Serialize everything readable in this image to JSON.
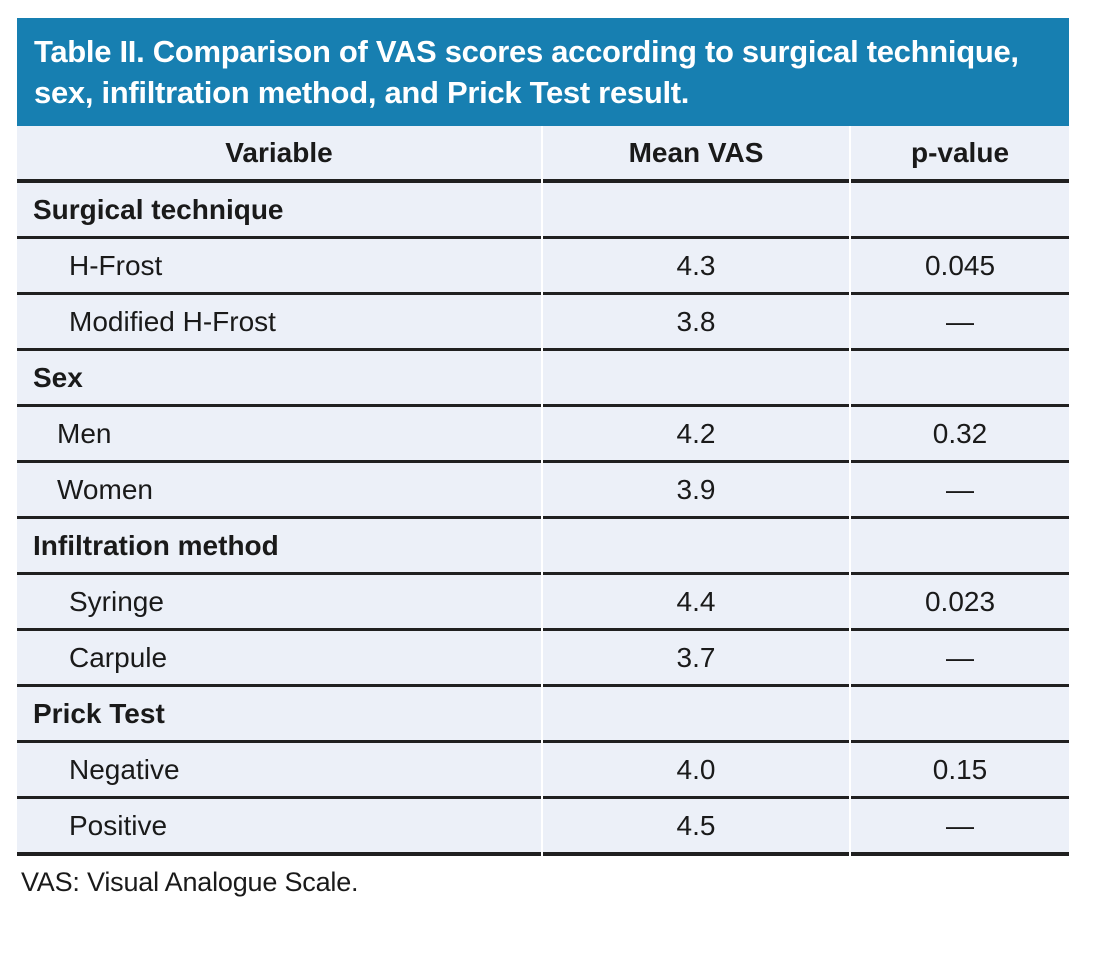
{
  "table": {
    "title": "Table II. Comparison of VAS scores according to surgical technique, sex, infiltration method, and Prick Test result.",
    "columns": [
      "Variable",
      "Mean VAS",
      "p-value"
    ],
    "sections": [
      {
        "label": "Surgical technique",
        "rows": [
          {
            "label": "H-Frost",
            "mean_vas": "4.3",
            "p_value": "0.045",
            "indent": 2
          },
          {
            "label": "Modified H-Frost",
            "mean_vas": "3.8",
            "p_value": "—",
            "indent": 2
          }
        ]
      },
      {
        "label": "Sex",
        "rows": [
          {
            "label": "Men",
            "mean_vas": "4.2",
            "p_value": "0.32",
            "indent": 1
          },
          {
            "label": "Women",
            "mean_vas": "3.9",
            "p_value": "—",
            "indent": 1
          }
        ]
      },
      {
        "label": "Infiltration method",
        "rows": [
          {
            "label": "Syringe",
            "mean_vas": "4.4",
            "p_value": "0.023",
            "indent": 2
          },
          {
            "label": "Carpule",
            "mean_vas": "3.7",
            "p_value": "—",
            "indent": 2
          }
        ]
      },
      {
        "label": "Prick Test",
        "rows": [
          {
            "label": "Negative",
            "mean_vas": "4.0",
            "p_value": "0.15",
            "indent": 2
          },
          {
            "label": "Positive",
            "mean_vas": "4.5",
            "p_value": "—",
            "indent": 2
          }
        ]
      }
    ],
    "footnote": "VAS: Visual Analogue Scale.",
    "colors": {
      "header_bg": "#177FB1",
      "row_bg": "#ECF0F8",
      "border": "#202020",
      "text": "#1a1a1a",
      "title_text": "#ffffff"
    }
  }
}
